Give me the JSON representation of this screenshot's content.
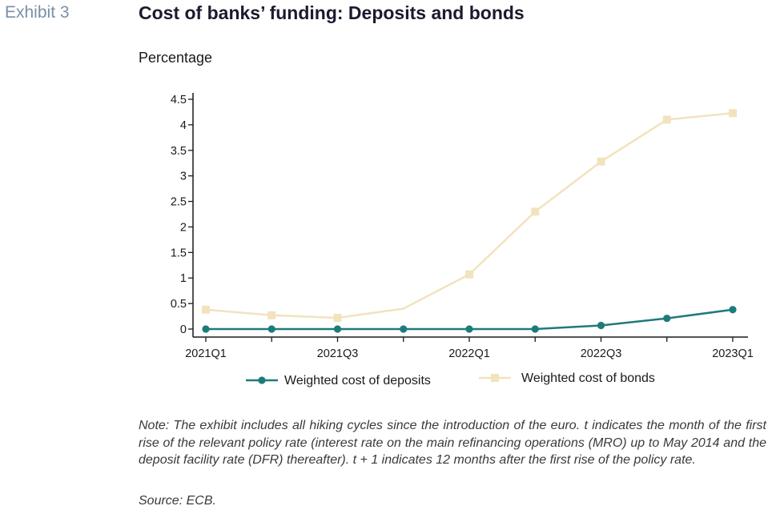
{
  "exhibit_label": "Exhibit 3",
  "title": "Cost of banks’ funding: Deposits and bonds",
  "unit_label": "Percentage",
  "note": "Note: The exhibit includes all hiking cycles since the introduction of the euro. t indicates the month of the first rise of the relevant policy rate (interest rate on the main refinancing operations (MRO) up to May 2014 and the deposit facility rate (DFR) thereafter). t + 1 indicates 12 months after the first rise of the policy rate.",
  "source": "Source: ECB.",
  "colors": {
    "deposits": "#1f7a7a",
    "bonds": "#f2e3bd",
    "axis": "#1a1a1a"
  },
  "chart_data": {
    "type": "line",
    "x": [
      "2021Q1",
      "2021Q2",
      "2021Q3",
      "2021Q4",
      "2022Q1",
      "2022Q2",
      "2022Q3",
      "2022Q4",
      "2023Q1"
    ],
    "x_tick_labels": [
      "2021Q1",
      "2021Q3",
      "2022Q1",
      "2022Q3",
      "2023Q1"
    ],
    "y_tick_labels": [
      "0",
      "0.5",
      "1",
      "1.5",
      "2",
      "2.5",
      "3",
      "3.5",
      "4",
      "4.5"
    ],
    "ylim": [
      0,
      4.5
    ],
    "grid": false,
    "legend_position": "bottom",
    "series": [
      {
        "name": "Weighted cost of deposits",
        "marker": "circle",
        "markers_on": [
          true,
          true,
          true,
          true,
          true,
          true,
          true,
          true,
          true
        ],
        "values": [
          0.0,
          0.0,
          0.0,
          0.0,
          0.0,
          0.0,
          0.07,
          0.21,
          0.38
        ]
      },
      {
        "name": "Weighted cost of bonds",
        "marker": "square",
        "markers_on": [
          true,
          true,
          true,
          false,
          true,
          true,
          true,
          true,
          true
        ],
        "values": [
          0.38,
          0.27,
          0.22,
          0.4,
          1.07,
          2.3,
          3.28,
          4.1,
          4.23
        ]
      }
    ]
  }
}
